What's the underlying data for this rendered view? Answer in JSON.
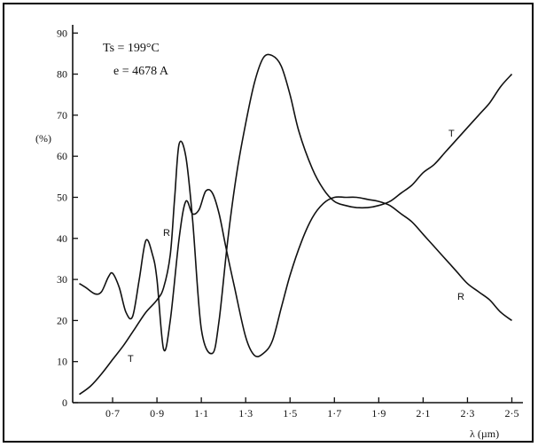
{
  "chart_data": {
    "type": "line",
    "annotations": [
      "Ts = 199°C",
      "e = 4678 A"
    ],
    "ylabel": "(%)",
    "xlabel": "λ (µm)",
    "xlim": [
      0.52,
      2.55
    ],
    "ylim": [
      0,
      92
    ],
    "x_ticks": [
      "0·7",
      "0·9",
      "1·1",
      "1·3",
      "1·5",
      "1·7",
      "1·9",
      "2·1",
      "2·3",
      "2·5"
    ],
    "x_tick_values": [
      0.7,
      0.9,
      1.1,
      1.3,
      1.5,
      1.7,
      1.9,
      2.1,
      2.3,
      2.5
    ],
    "y_ticks": [
      "0",
      "10",
      "20",
      "30",
      "40",
      "50",
      "60",
      "70",
      "80",
      "90"
    ],
    "y_tick_values": [
      0,
      10,
      20,
      30,
      40,
      50,
      60,
      70,
      80,
      90
    ],
    "grid": false,
    "series": [
      {
        "name": "T",
        "x": [
          0.55,
          0.6,
          0.65,
          0.7,
          0.75,
          0.8,
          0.85,
          0.9,
          0.93,
          0.96,
          0.98,
          1.0,
          1.03,
          1.06,
          1.1,
          1.15,
          1.18,
          1.22,
          1.26,
          1.3,
          1.34,
          1.38,
          1.42,
          1.46,
          1.5,
          1.54,
          1.6,
          1.65,
          1.7,
          1.75,
          1.8,
          1.85,
          1.9,
          1.95,
          2.0,
          2.05,
          2.1,
          2.15,
          2.2,
          2.25,
          2.3,
          2.35,
          2.4,
          2.45,
          2.5
        ],
        "y": [
          2,
          4,
          7,
          10.5,
          14,
          18,
          22,
          25,
          28,
          36,
          50,
          63,
          60,
          45,
          18,
          12,
          20,
          40,
          56,
          68,
          78,
          84,
          84.5,
          82,
          75,
          66,
          57,
          52,
          49,
          48,
          47.5,
          47.5,
          48,
          49,
          51,
          53,
          56,
          58,
          61,
          64,
          67,
          70,
          73,
          77,
          80
        ]
      },
      {
        "name": "R",
        "x": [
          0.55,
          0.58,
          0.62,
          0.65,
          0.68,
          0.7,
          0.73,
          0.76,
          0.79,
          0.82,
          0.85,
          0.88,
          0.9,
          0.93,
          0.96,
          1.0,
          1.03,
          1.06,
          1.09,
          1.12,
          1.15,
          1.18,
          1.21,
          1.25,
          1.3,
          1.34,
          1.38,
          1.42,
          1.46,
          1.5,
          1.55,
          1.6,
          1.65,
          1.7,
          1.75,
          1.8,
          1.85,
          1.9,
          1.95,
          2.0,
          2.05,
          2.1,
          2.15,
          2.2,
          2.25,
          2.3,
          2.35,
          2.4,
          2.45,
          2.5
        ],
        "y": [
          29,
          28,
          26.5,
          27,
          30.5,
          31.5,
          28,
          22,
          21,
          30,
          39.5,
          36,
          30,
          13,
          20,
          40,
          49,
          46,
          47,
          51.5,
          51,
          46,
          38,
          28,
          16,
          11.5,
          12,
          15,
          23,
          31,
          39,
          45,
          48.5,
          50,
          50,
          50,
          49.5,
          49,
          48,
          46,
          44,
          41,
          38,
          35,
          32,
          29,
          27,
          25,
          22,
          20
        ]
      }
    ]
  }
}
